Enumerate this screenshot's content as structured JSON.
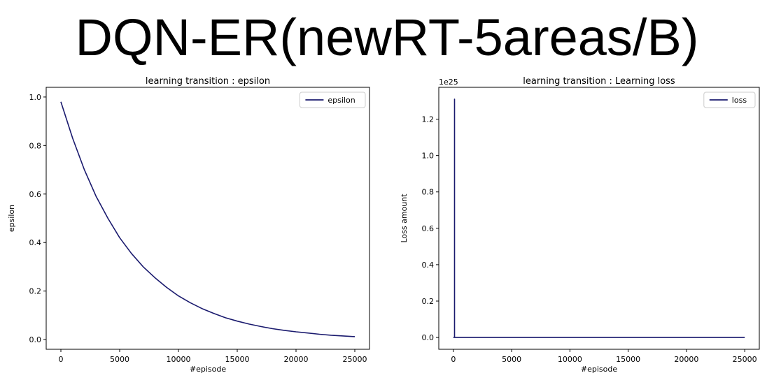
{
  "slide": {
    "title": "DQN-ER(newRT-5areas/B)"
  },
  "colors": {
    "line": "#1a1a6e",
    "legend_border": "#cccccc"
  },
  "chart_data": [
    {
      "type": "line",
      "title": "learning transition : epsilon",
      "xlabel": "#episode",
      "ylabel": "epsilon",
      "xlim": [
        -1250,
        26250
      ],
      "ylim": [
        -0.04,
        1.04
      ],
      "xticks": [
        0,
        5000,
        10000,
        15000,
        20000,
        25000
      ],
      "xtick_labels": [
        "0",
        "5000",
        "10000",
        "15000",
        "20000",
        "25000"
      ],
      "yticks": [
        0.0,
        0.2,
        0.4,
        0.6,
        0.8,
        1.0
      ],
      "ytick_labels": [
        "0.0",
        "0.2",
        "0.4",
        "0.6",
        "0.8",
        "1.0"
      ],
      "legend": {
        "position": "top-right"
      },
      "grid": false,
      "series": [
        {
          "name": "epsilon",
          "x": [
            0,
            1000,
            2000,
            3000,
            4000,
            5000,
            6000,
            7000,
            8000,
            9000,
            10000,
            11000,
            12000,
            13000,
            14000,
            15000,
            16000,
            17000,
            18000,
            19000,
            20000,
            21000,
            22000,
            23000,
            24000,
            25000
          ],
          "y": [
            0.98,
            0.83,
            0.7,
            0.59,
            0.5,
            0.42,
            0.355,
            0.3,
            0.255,
            0.215,
            0.18,
            0.152,
            0.128,
            0.108,
            0.09,
            0.076,
            0.064,
            0.054,
            0.045,
            0.038,
            0.032,
            0.027,
            0.022,
            0.018,
            0.015,
            0.012
          ]
        }
      ]
    },
    {
      "type": "line",
      "title": "learning transition : Learning loss",
      "xlabel": "#episode",
      "ylabel": "Loss amount",
      "offset_text": "1e25",
      "xlim": [
        -1250,
        26250
      ],
      "ylim": [
        -0.065,
        1.375
      ],
      "xticks": [
        0,
        5000,
        10000,
        15000,
        20000,
        25000
      ],
      "xtick_labels": [
        "0",
        "5000",
        "10000",
        "15000",
        "20000",
        "25000"
      ],
      "yticks": [
        0.0,
        0.2,
        0.4,
        0.6,
        0.8,
        1.0,
        1.2
      ],
      "ytick_labels": [
        "0.0",
        "0.2",
        "0.4",
        "0.6",
        "0.8",
        "1.0",
        "1.2"
      ],
      "legend": {
        "position": "top-right"
      },
      "grid": false,
      "series": [
        {
          "name": "loss",
          "x": [
            0,
            99,
            100,
            101,
            25000
          ],
          "y": [
            0.0,
            0.0,
            1.31,
            0.0,
            0.0
          ]
        }
      ]
    }
  ]
}
